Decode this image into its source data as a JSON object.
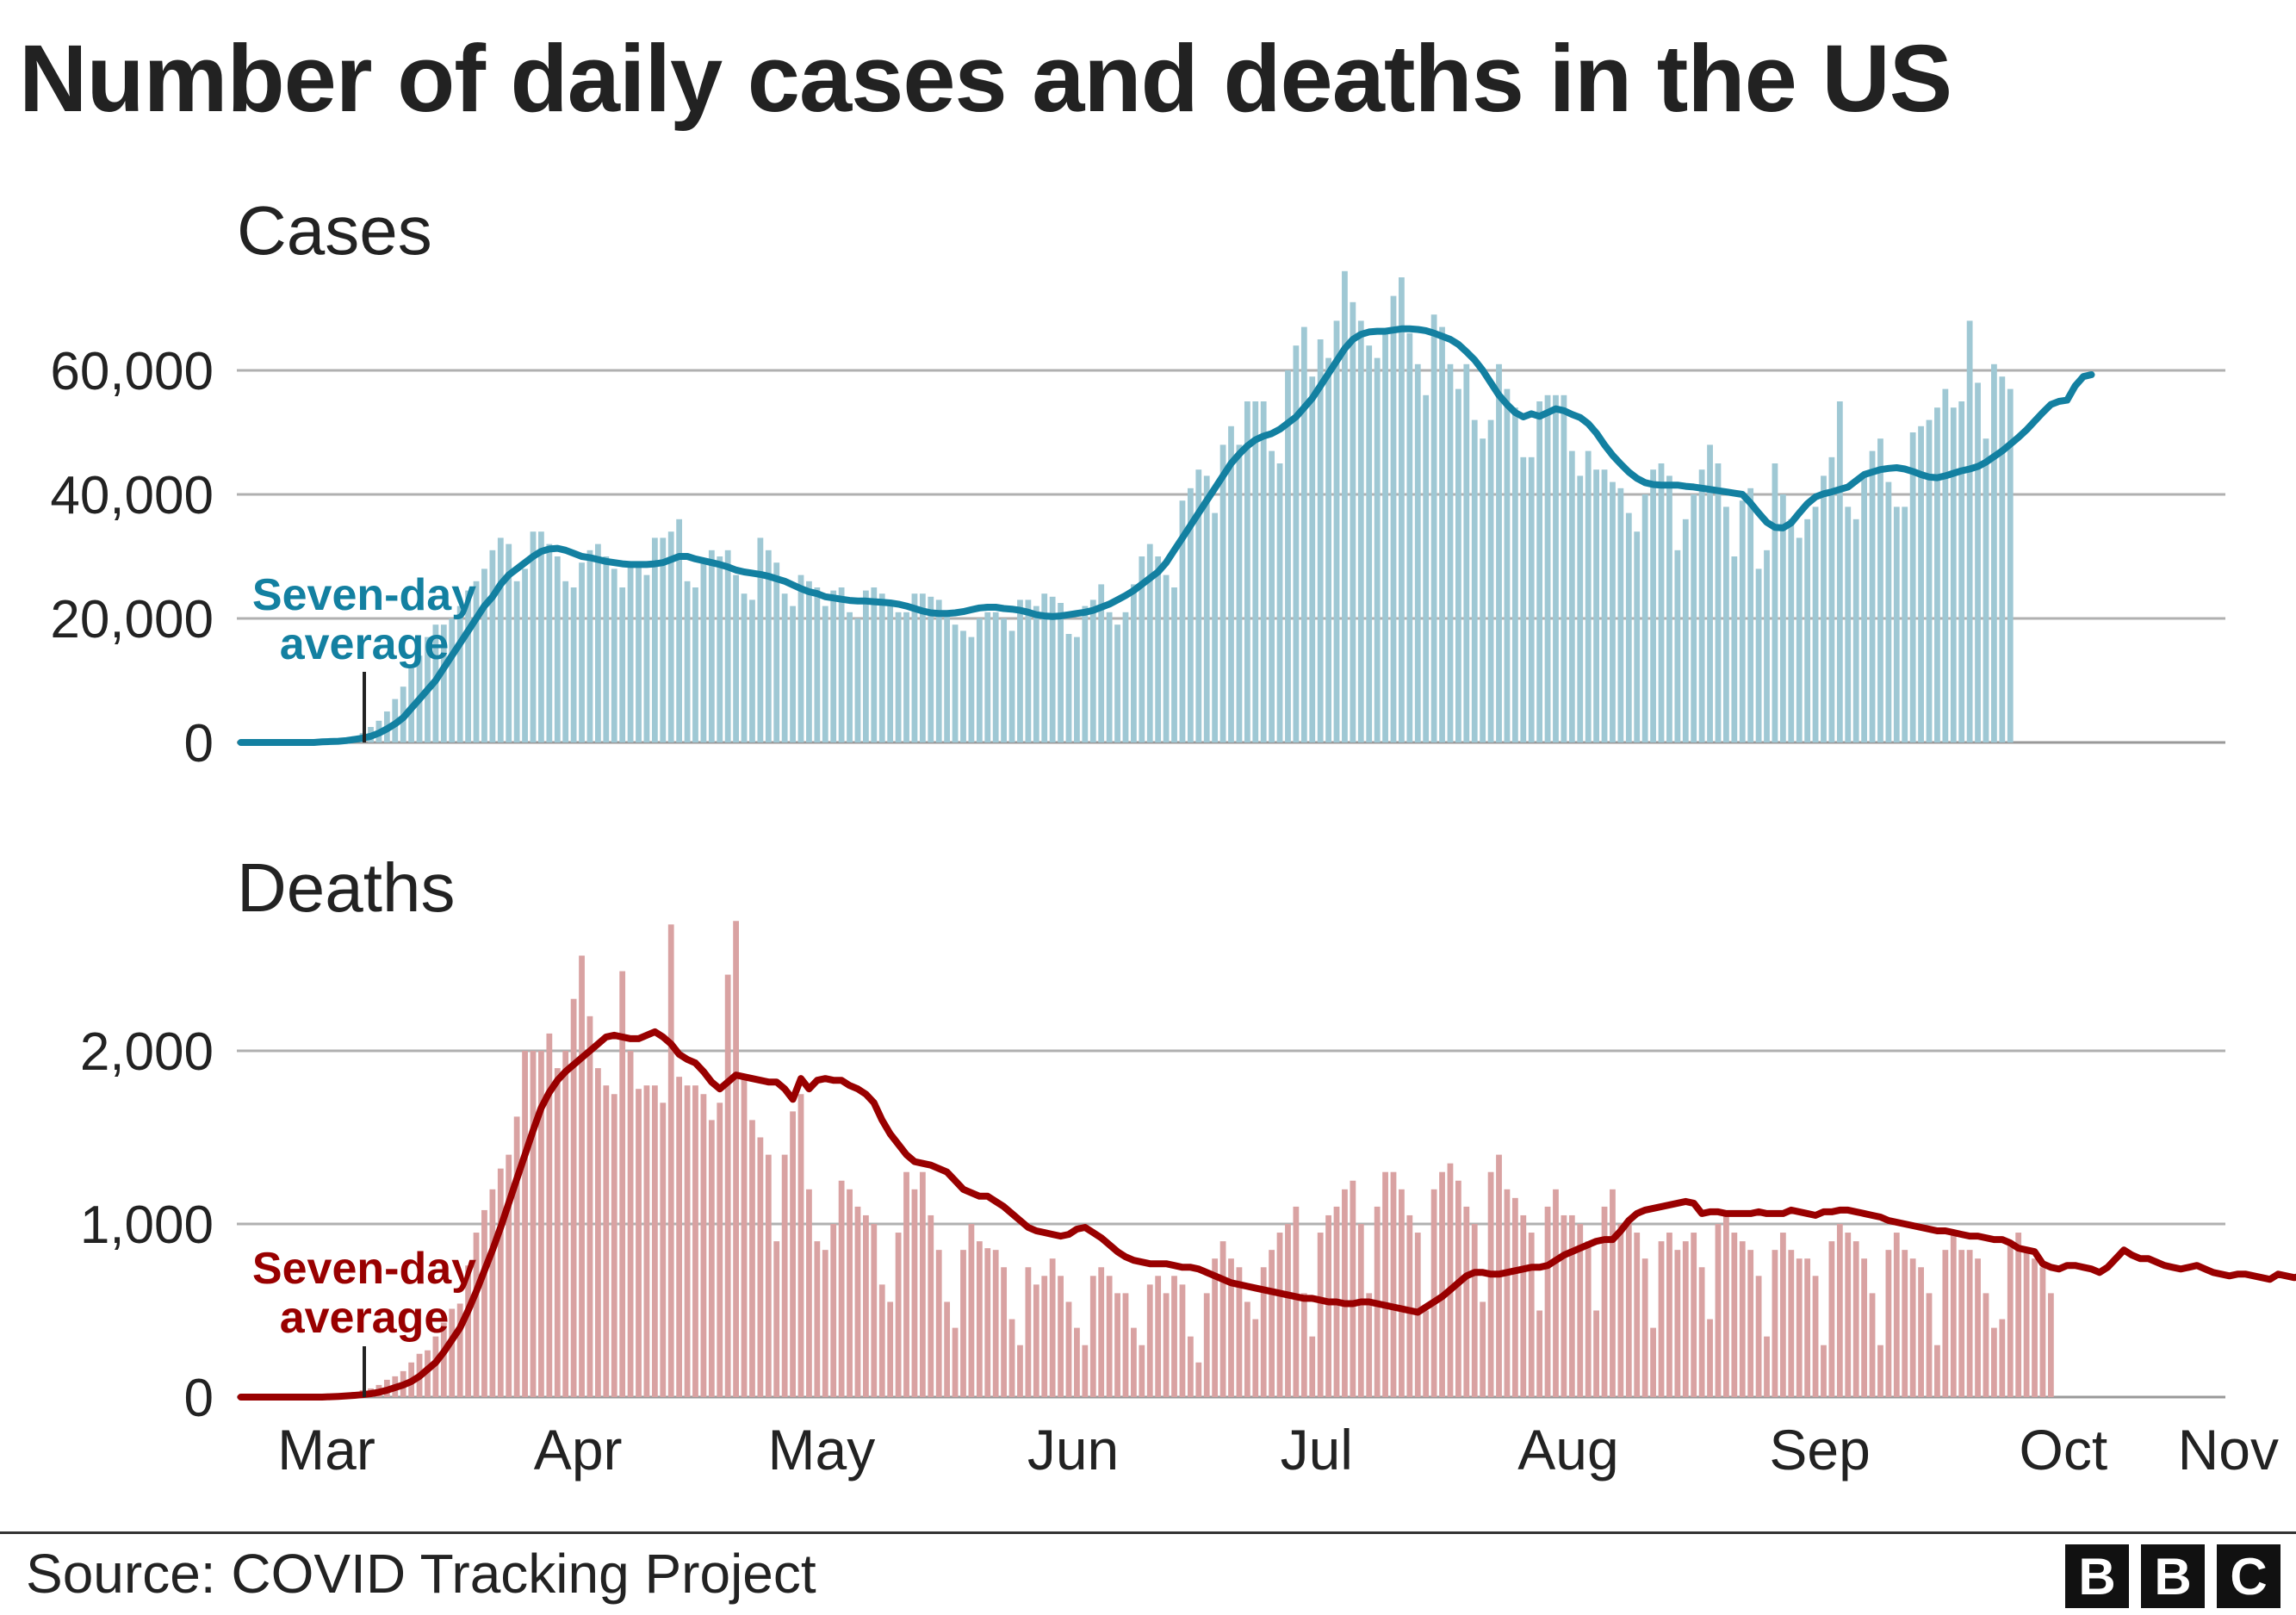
{
  "title": "Number of daily cases and deaths in the US",
  "source": "Source: COVID Tracking Project",
  "logo": [
    "B",
    "B",
    "C"
  ],
  "colors": {
    "cases_bar": "#9fc8d4",
    "cases_line": "#1380a1",
    "deaths_bar": "#d9a2a2",
    "deaths_line": "#990000",
    "grid": "#b0b0b0",
    "text": "#222222"
  },
  "chart_data": [
    {
      "type": "bar",
      "title": "Cases",
      "x_unit": "date",
      "x_range": [
        "2020-03-01",
        "2020-11-01"
      ],
      "x_ticks": [
        "Mar",
        "Apr",
        "May",
        "Jun",
        "Jul",
        "Aug",
        "Sep",
        "Oct",
        "Nov"
      ],
      "ylim": [
        0,
        76000
      ],
      "y_ticks": [
        0,
        20000,
        40000,
        60000
      ],
      "y_tick_labels": [
        "0",
        "20,000",
        "40,000",
        "60,000"
      ],
      "grid": true,
      "annotation": [
        "Seven-day",
        "average"
      ],
      "bars": {
        "start_date": "2020-03-01",
        "values": [
          0,
          0,
          0,
          0,
          0,
          0,
          0,
          0,
          100,
          150,
          300,
          400,
          500,
          700,
          1000,
          1500,
          2500,
          3500,
          5000,
          7000,
          9000,
          12000,
          14000,
          17000,
          19000,
          19000,
          20000,
          22000,
          24500,
          26000,
          28000,
          31000,
          33000,
          32000,
          26000,
          28000,
          34000,
          34000,
          32000,
          30000,
          26000,
          25000,
          29000,
          31000,
          32000,
          30000,
          28000,
          25000,
          29000,
          29000,
          27000,
          33000,
          33000,
          34000,
          36000,
          26000,
          25000,
          29000,
          31000,
          30000,
          31000,
          27000,
          24000,
          23000,
          33000,
          31000,
          29000,
          24000,
          22000,
          27000,
          26000,
          25000,
          22000,
          24500,
          25000,
          21000,
          20000,
          24500,
          25000,
          24000,
          22500,
          21000,
          21000,
          24000,
          24000,
          23500,
          23000,
          21000,
          19000,
          18000,
          17000,
          20000,
          21000,
          21000,
          20000,
          18000,
          23000,
          23000,
          22000,
          24000,
          23500,
          22500,
          17500,
          17000,
          22000,
          23000,
          25500,
          21000,
          19000,
          21000,
          25500,
          30000,
          32000,
          30000,
          27000,
          25000,
          39000,
          41000,
          44000,
          43000,
          37000,
          48000,
          51000,
          48000,
          55000,
          55000,
          55000,
          47000,
          45000,
          60000,
          64000,
          67000,
          59000,
          65000,
          62000,
          68000,
          76000,
          71000,
          68000,
          64000,
          62000,
          66000,
          72000,
          75000,
          66000,
          61000,
          56000,
          69000,
          67000,
          61000,
          57000,
          61000,
          52000,
          49000,
          52000,
          61000,
          57000,
          54000,
          46000,
          46000,
          55000,
          56000,
          56000,
          56000,
          47000,
          43000,
          47000,
          44000,
          44000,
          42000,
          41000,
          37000,
          34000,
          40000,
          44000,
          45000,
          43000,
          31000,
          36000,
          40000,
          44000,
          48000,
          45000,
          38000,
          30000,
          39000,
          41000,
          28000,
          31000,
          45000,
          40000,
          36000,
          33000,
          36000,
          38000,
          43000,
          46000,
          55000,
          38000,
          36000,
          43000,
          47000,
          49000,
          42000,
          38000,
          38000,
          50000,
          51000,
          52000,
          54000,
          57000,
          54000,
          55000,
          68000,
          58000,
          49000,
          61000,
          59000,
          57000
        ]
      },
      "average": {
        "start_date": "2020-03-01",
        "values": [
          0,
          0,
          0,
          0,
          0,
          0,
          0,
          0,
          0,
          0,
          100,
          150,
          200,
          300,
          500,
          700,
          1000,
          1500,
          2200,
          3000,
          4000,
          5500,
          7000,
          8500,
          10000,
          12000,
          14000,
          16000,
          18000,
          20000,
          22000,
          23500,
          25500,
          27000,
          28000,
          29000,
          30000,
          30800,
          31200,
          31300,
          31000,
          30500,
          30000,
          29800,
          29500,
          29200,
          29000,
          28800,
          28700,
          28700,
          28700,
          28800,
          29000,
          29500,
          30000,
          30000,
          29600,
          29300,
          29000,
          28700,
          28300,
          27800,
          27500,
          27300,
          27100,
          26800,
          26400,
          26000,
          25400,
          24800,
          24300,
          24000,
          23500,
          23300,
          23100,
          22900,
          22800,
          22800,
          22700,
          22600,
          22500,
          22300,
          22000,
          21600,
          21200,
          20900,
          20800,
          20800,
          20900,
          21100,
          21400,
          21700,
          21800,
          21800,
          21600,
          21500,
          21300,
          21000,
          20600,
          20400,
          20300,
          20400,
          20600,
          20800,
          21000,
          21300,
          21800,
          22300,
          23000,
          23700,
          24500,
          25500,
          26500,
          27500,
          29000,
          31000,
          33000,
          35000,
          37000,
          39000,
          41000,
          43000,
          45000,
          46500,
          47800,
          48800,
          49400,
          49800,
          50500,
          51500,
          52500,
          54000,
          55500,
          57500,
          59500,
          61500,
          63500,
          65000,
          65800,
          66200,
          66300,
          66300,
          66500,
          66700,
          66700,
          66600,
          66400,
          66000,
          65500,
          65000,
          64200,
          63000,
          61700,
          60000,
          58000,
          56000,
          54500,
          53200,
          52500,
          53000,
          52600,
          53200,
          53800,
          53500,
          52900,
          52400,
          51400,
          49900,
          48000,
          46300,
          44900,
          43600,
          42600,
          41900,
          41600,
          41500,
          41500,
          41500,
          41300,
          41200,
          41000,
          40800,
          40600,
          40400,
          40200,
          40000,
          38600,
          37000,
          35500,
          34700,
          34600,
          35400,
          37000,
          38500,
          39600,
          40100,
          40400,
          40800,
          41200,
          42200,
          43200,
          43600,
          44000,
          44200,
          44300,
          44100,
          43700,
          43200,
          42800,
          42700,
          43000,
          43400,
          43800,
          44100,
          44500,
          45200,
          46100,
          47000,
          48100,
          49200,
          50400,
          51800,
          53200,
          54500,
          55000,
          55200,
          57500,
          59000,
          59300
        ]
      }
    },
    {
      "type": "bar",
      "title": "Deaths",
      "x_unit": "date",
      "x_range": [
        "2020-03-01",
        "2020-11-01"
      ],
      "x_ticks": [
        "Mar",
        "Apr",
        "May",
        "Jun",
        "Jul",
        "Aug",
        "Sep",
        "Oct",
        "Nov"
      ],
      "ylim": [
        0,
        2750
      ],
      "y_ticks": [
        0,
        1000,
        2000
      ],
      "y_tick_labels": [
        "0",
        "1,000",
        "2,000"
      ],
      "grid": true,
      "annotation": [
        "Seven-day",
        "average"
      ],
      "bars": {
        "start_date": "2020-03-01",
        "values": [
          0,
          0,
          0,
          0,
          0,
          0,
          0,
          0,
          0,
          0,
          0,
          5,
          10,
          20,
          30,
          40,
          50,
          70,
          100,
          120,
          150,
          200,
          250,
          270,
          350,
          430,
          510,
          540,
          760,
          950,
          1080,
          1200,
          1320,
          1400,
          1620,
          2000,
          2000,
          2000,
          2100,
          1900,
          2000,
          2300,
          2550,
          2200,
          1900,
          1800,
          1750,
          2460,
          2000,
          1780,
          1800,
          1800,
          1700,
          2730,
          1850,
          1800,
          1800,
          1750,
          1600,
          1700,
          2440,
          2750,
          1850,
          1600,
          1500,
          1400,
          900,
          1400,
          1650,
          1750,
          1200,
          900,
          850,
          1000,
          1250,
          1200,
          1100,
          1050,
          1000,
          650,
          550,
          950,
          1300,
          1200,
          1300,
          1050,
          850,
          550,
          400,
          850,
          1000,
          900,
          860,
          850,
          750,
          450,
          300,
          750,
          650,
          700,
          800,
          700,
          550,
          400,
          300,
          700,
          750,
          700,
          600,
          600,
          400,
          300,
          650,
          700,
          600,
          700,
          650,
          350,
          200,
          600,
          800,
          900,
          800,
          750,
          550,
          450,
          750,
          850,
          950,
          1000,
          1100,
          600,
          350,
          950,
          1050,
          1100,
          1200,
          1250,
          1000,
          600,
          1100,
          1300,
          1300,
          1200,
          1050,
          950,
          500,
          1200,
          1300,
          1350,
          1250,
          1100,
          1000,
          550,
          1300,
          1400,
          1200,
          1150,
          1050,
          950,
          500,
          1100,
          1200,
          1050,
          1050,
          1000,
          900,
          500,
          1100,
          1200,
          1000,
          1000,
          950,
          800,
          400,
          900,
          950,
          850,
          900,
          950,
          750,
          450,
          1000,
          1050,
          950,
          900,
          850,
          700,
          350,
          850,
          950,
          850,
          800,
          800,
          700,
          300,
          900,
          1000,
          950,
          900,
          800,
          600,
          300,
          850,
          950,
          850,
          800,
          750,
          600,
          300,
          850,
          950,
          850,
          850,
          800,
          600,
          400,
          450,
          900,
          950,
          850,
          800,
          750,
          600
        ]
      },
      "average": {
        "start_date": "2020-03-01",
        "values": [
          0,
          0,
          0,
          0,
          0,
          0,
          0,
          0,
          0,
          0,
          0,
          2,
          4,
          7,
          10,
          14,
          20,
          28,
          40,
          55,
          70,
          90,
          120,
          160,
          200,
          260,
          330,
          400,
          500,
          610,
          730,
          850,
          980,
          1120,
          1260,
          1400,
          1540,
          1670,
          1760,
          1830,
          1880,
          1920,
          1960,
          2000,
          2040,
          2080,
          2090,
          2080,
          2070,
          2070,
          2090,
          2110,
          2080,
          2040,
          1980,
          1950,
          1930,
          1880,
          1820,
          1780,
          1820,
          1860,
          1850,
          1840,
          1830,
          1820,
          1820,
          1780,
          1720,
          1840,
          1780,
          1830,
          1840,
          1830,
          1830,
          1800,
          1780,
          1750,
          1700,
          1600,
          1520,
          1460,
          1400,
          1360,
          1350,
          1340,
          1320,
          1300,
          1250,
          1200,
          1180,
          1160,
          1160,
          1130,
          1100,
          1060,
          1020,
          980,
          960,
          950,
          940,
          930,
          940,
          970,
          980,
          950,
          920,
          880,
          840,
          810,
          790,
          780,
          770,
          770,
          770,
          760,
          750,
          750,
          740,
          720,
          700,
          680,
          660,
          650,
          640,
          630,
          620,
          610,
          600,
          590,
          580,
          570,
          570,
          560,
          550,
          550,
          540,
          540,
          550,
          550,
          540,
          530,
          520,
          510,
          500,
          490,
          520,
          550,
          580,
          620,
          660,
          700,
          720,
          720,
          710,
          710,
          720,
          730,
          740,
          750,
          750,
          760,
          790,
          820,
          840,
          860,
          880,
          900,
          910,
          910,
          960,
          1020,
          1060,
          1080,
          1090,
          1100,
          1110,
          1120,
          1130,
          1120,
          1060,
          1070,
          1070,
          1060,
          1060,
          1060,
          1060,
          1070,
          1060,
          1060,
          1060,
          1080,
          1070,
          1060,
          1050,
          1070,
          1070,
          1080,
          1080,
          1070,
          1060,
          1050,
          1040,
          1020,
          1010,
          1000,
          990,
          980,
          970,
          960,
          960,
          950,
          940,
          930,
          930,
          920,
          910,
          910,
          890,
          860,
          850,
          840,
          770,
          750,
          740,
          760,
          760,
          750,
          740,
          720,
          750,
          800,
          850,
          820,
          800,
          800,
          780,
          760,
          750,
          740,
          750,
          760,
          740,
          720,
          710,
          700,
          710,
          710,
          700,
          690,
          680,
          710,
          700,
          690,
          700,
          700,
          700,
          710,
          700,
          700,
          690,
          690,
          700,
          710,
          740,
          760,
          770
        ]
      }
    }
  ]
}
